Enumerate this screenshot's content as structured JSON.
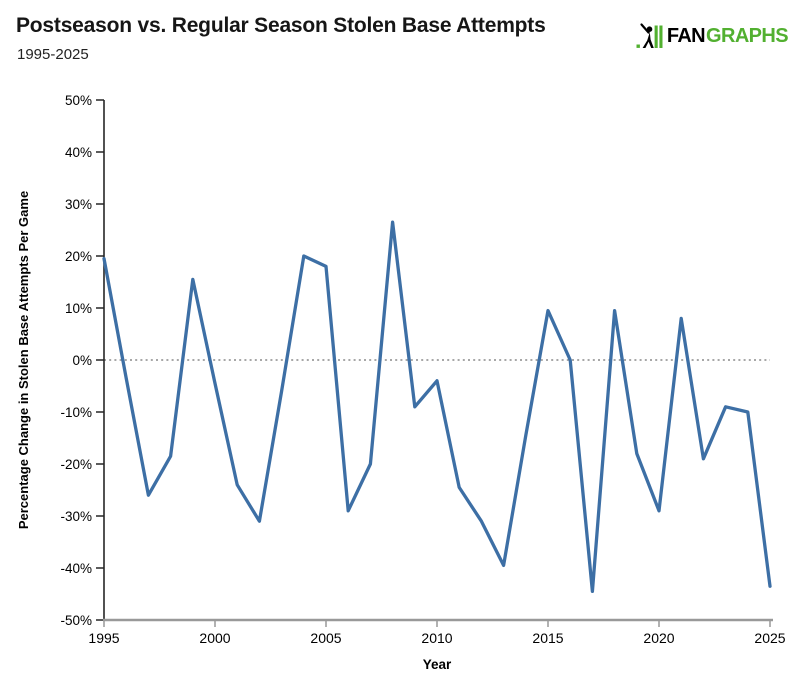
{
  "header": {
    "title": "Postseason vs. Regular Season Stolen Base Attempts",
    "subtitle": "1995-2025",
    "logo": {
      "fan": "FAN",
      "graphs": "GRAPHS"
    }
  },
  "colors": {
    "line": "#3D6FA5",
    "zero_line": "#8a8a8a",
    "x_axis": "#999999",
    "y_axis": "#262626",
    "text": "#000000",
    "logo_green": "#52b030",
    "logo_black": "#000000"
  },
  "chart_data": {
    "type": "line",
    "title": "Postseason vs. Regular Season Stolen Base Attempts",
    "subtitle": "1995-2025",
    "xlabel": "Year",
    "ylabel": "Percentage Change in Stolen Base Attempts Per Game",
    "series": [
      {
        "name": "Percentage change in stolen base attempts per game, postseason vs. regular season",
        "x": [
          1995,
          1996,
          1997,
          1998,
          1999,
          2000,
          2001,
          2002,
          2003,
          2004,
          2005,
          2006,
          2007,
          2008,
          2009,
          2010,
          2011,
          2012,
          2013,
          2014,
          2015,
          2016,
          2017,
          2018,
          2019,
          2020,
          2021,
          2022,
          2023,
          2024,
          2025
        ],
        "values": [
          19.5,
          -3.5,
          -26,
          -18.5,
          15.5,
          -4.5,
          -24,
          -31,
          -6,
          20,
          18,
          -29,
          -20,
          26.5,
          -9,
          -4,
          -24.5,
          -31,
          -39.5,
          -14.5,
          9.5,
          0,
          -44.5,
          9.5,
          -18,
          -29,
          8,
          -19,
          -9,
          -10,
          -43.5
        ]
      }
    ],
    "xlim": [
      1995,
      2025
    ],
    "ylim": [
      -50,
      50
    ],
    "xticks": [
      1995,
      2000,
      2005,
      2010,
      2015,
      2020,
      2025
    ],
    "ytick_step": 10,
    "ytick_suffix": "%",
    "zero_line": true,
    "grid": false,
    "legend_position": "none"
  }
}
